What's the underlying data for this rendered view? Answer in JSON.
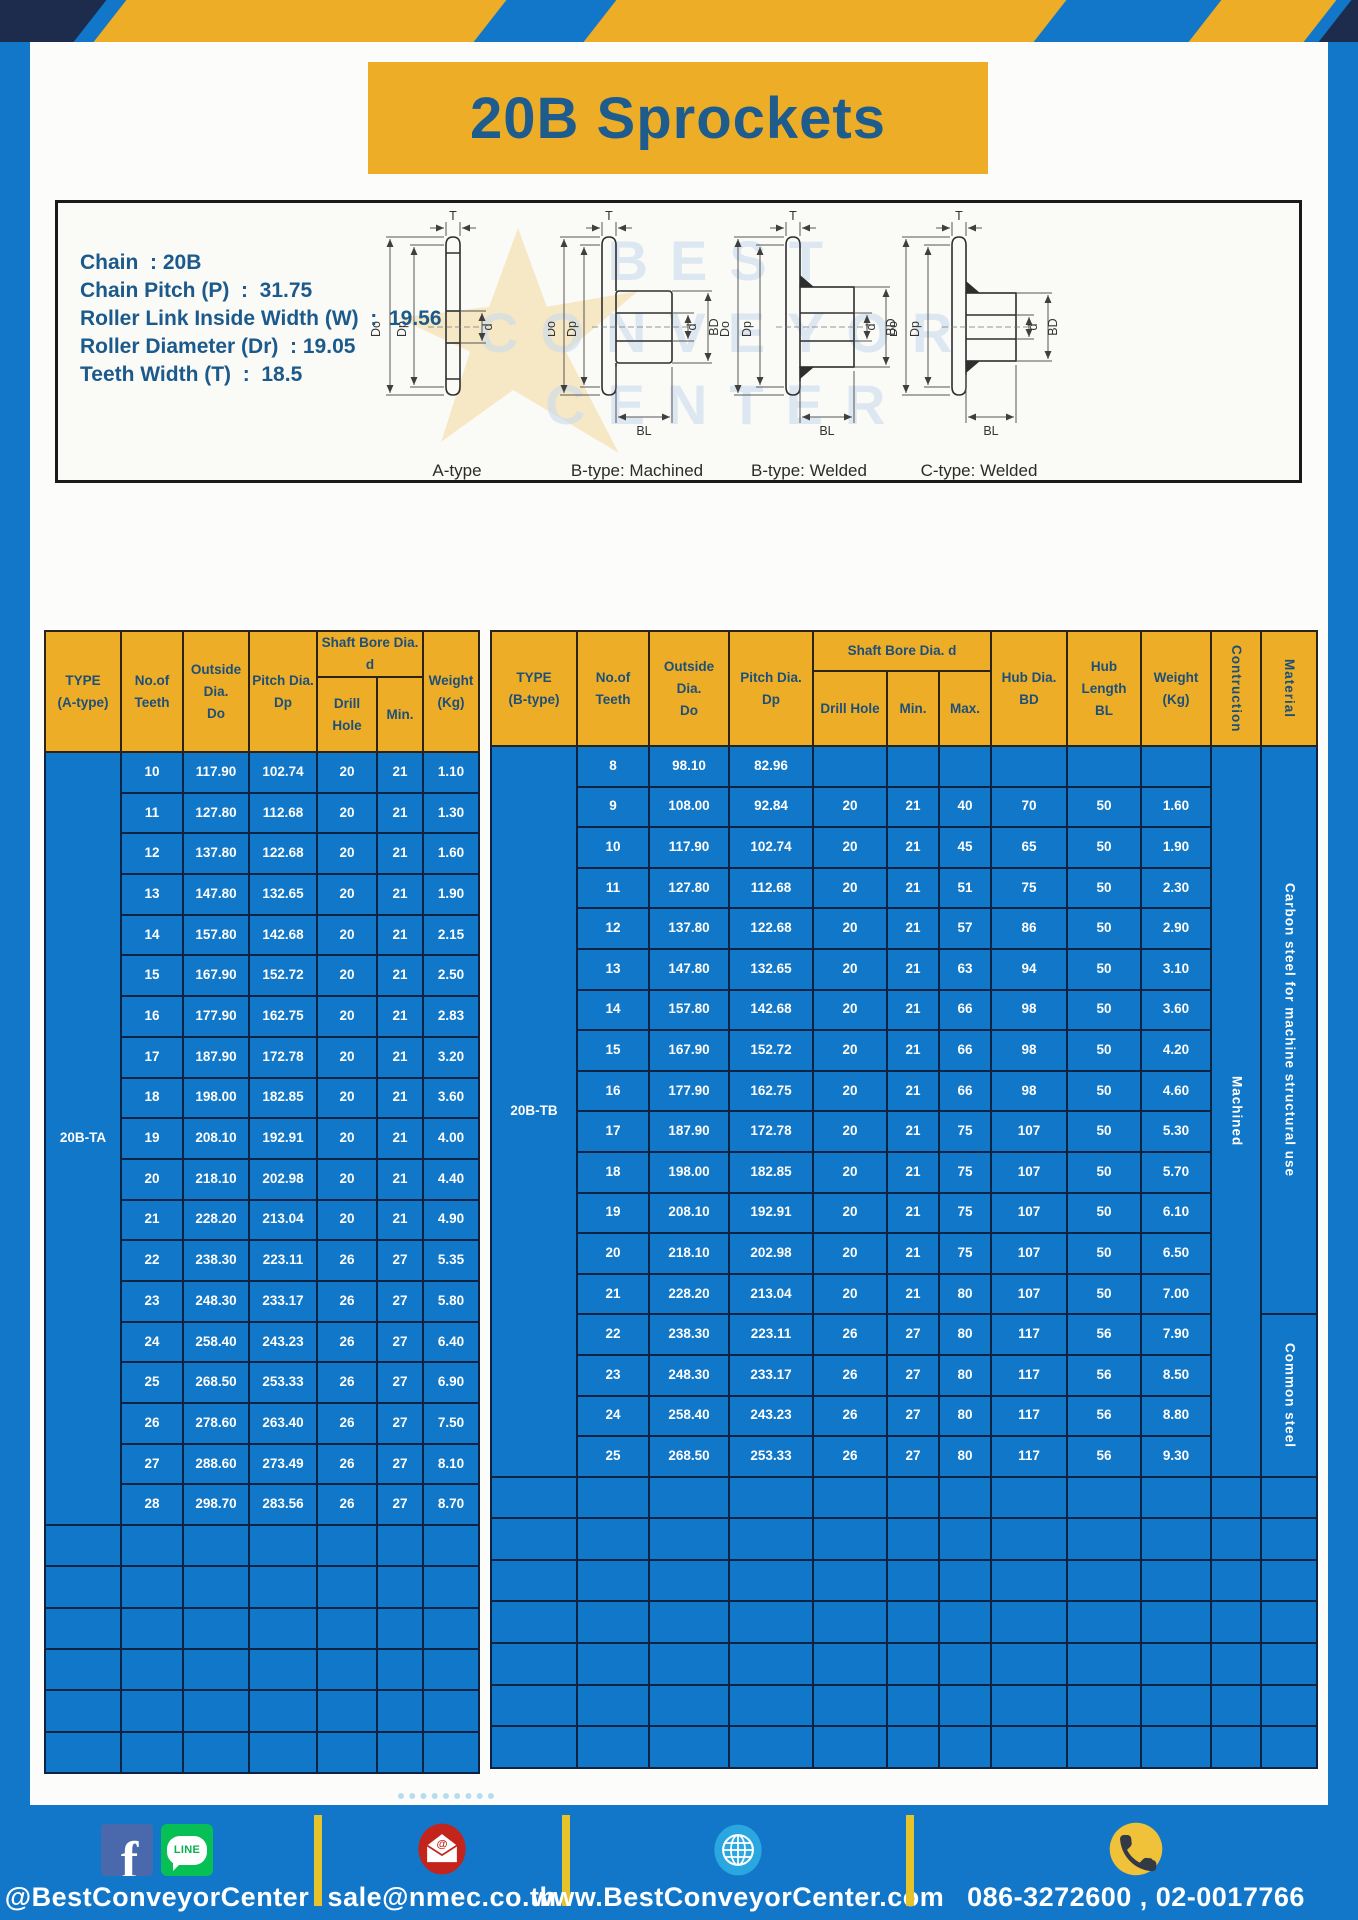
{
  "page": {
    "title": "20B Sprockets"
  },
  "specs": {
    "lines": [
      "Chain  : 20B",
      "Chain Pitch (P)  :  31.75",
      "Roller Link Inside Width (W)  :  19.56",
      "Roller Diameter (Dr)  : 19.05",
      "Teeth Width (T)  :  18.5"
    ]
  },
  "watermark": {
    "lines": [
      "BEST",
      "CONVEYOR",
      "CENTER"
    ]
  },
  "diagrams": {
    "items": [
      {
        "caption": "A-type",
        "labels": {
          "T": "T",
          "Do": "Do",
          "Dp": "Dp",
          "d": "d"
        }
      },
      {
        "caption": "B-type: Machined",
        "labels": {
          "T": "T",
          "Do": "Do",
          "Dp": "Dp",
          "d": "d",
          "BD": "BD",
          "BL": "BL"
        }
      },
      {
        "caption": "B-type: Welded",
        "labels": {
          "T": "T",
          "Do": "Do",
          "Dp": "Dp",
          "d": "d",
          "BD": "BD",
          "BL": "BL"
        }
      },
      {
        "caption": "C-type: Welded",
        "labels": {
          "T": "T",
          "Do": "Do",
          "Dp": "Dp",
          "d": "d",
          "BD": "BD",
          "BL": "BL"
        }
      }
    ]
  },
  "left_table": {
    "header": {
      "type": "TYPE\n(A-type)",
      "teeth": "No.of\nTeeth",
      "outside": "Outside\nDia.\nDo",
      "pitch": "Pitch Dia.\nDp",
      "shaft_bore": "Shaft Bore Dia. d",
      "drill_hole": "Drill Hole",
      "min": "Min.",
      "weight": "Weight\n(Kg)"
    },
    "type_label": "20B-TA",
    "empty_row_count": 6,
    "rows": [
      [
        "10",
        "117.90",
        "102.74",
        "20",
        "21",
        "1.10"
      ],
      [
        "11",
        "127.80",
        "112.68",
        "20",
        "21",
        "1.30"
      ],
      [
        "12",
        "137.80",
        "122.68",
        "20",
        "21",
        "1.60"
      ],
      [
        "13",
        "147.80",
        "132.65",
        "20",
        "21",
        "1.90"
      ],
      [
        "14",
        "157.80",
        "142.68",
        "20",
        "21",
        "2.15"
      ],
      [
        "15",
        "167.90",
        "152.72",
        "20",
        "21",
        "2.50"
      ],
      [
        "16",
        "177.90",
        "162.75",
        "20",
        "21",
        "2.83"
      ],
      [
        "17",
        "187.90",
        "172.78",
        "20",
        "21",
        "3.20"
      ],
      [
        "18",
        "198.00",
        "182.85",
        "20",
        "21",
        "3.60"
      ],
      [
        "19",
        "208.10",
        "192.91",
        "20",
        "21",
        "4.00"
      ],
      [
        "20",
        "218.10",
        "202.98",
        "20",
        "21",
        "4.40"
      ],
      [
        "21",
        "228.20",
        "213.04",
        "20",
        "21",
        "4.90"
      ],
      [
        "22",
        "238.30",
        "223.11",
        "26",
        "27",
        "5.35"
      ],
      [
        "23",
        "248.30",
        "233.17",
        "26",
        "27",
        "5.80"
      ],
      [
        "24",
        "258.40",
        "243.23",
        "26",
        "27",
        "6.40"
      ],
      [
        "25",
        "268.50",
        "253.33",
        "26",
        "27",
        "6.90"
      ],
      [
        "26",
        "278.60",
        "263.40",
        "26",
        "27",
        "7.50"
      ],
      [
        "27",
        "288.60",
        "273.49",
        "26",
        "27",
        "8.10"
      ],
      [
        "28",
        "298.70",
        "283.56",
        "26",
        "27",
        "8.70"
      ]
    ]
  },
  "right_table": {
    "header": {
      "type": "TYPE\n(B-type)",
      "teeth": "No.of\nTeeth",
      "outside": "Outside\nDia.\nDo",
      "pitch": "Pitch Dia.\nDp",
      "shaft_bore": "Shaft Bore Dia. d",
      "drill_hole": "Drill Hole",
      "min": "Min.",
      "max": "Max.",
      "hub_dia": "Hub Dia.\nBD",
      "hub_length": "Hub\nLength\nBL",
      "weight": "Weight\n(Kg)",
      "construction": "Contruction",
      "material": "Material"
    },
    "type_label": "20B-TB",
    "construction_value": "Machined",
    "materials": [
      {
        "label": "Carbon steel for machine structural use",
        "rowspan": 14
      },
      {
        "label": "Common steel",
        "rowspan": 4
      }
    ],
    "empty_row_count": 7,
    "rows": [
      [
        "8",
        "98.10",
        "82.96",
        "",
        "",
        "",
        "",
        "",
        ""
      ],
      [
        "9",
        "108.00",
        "92.84",
        "20",
        "21",
        "40",
        "70",
        "50",
        "1.60"
      ],
      [
        "10",
        "117.90",
        "102.74",
        "20",
        "21",
        "45",
        "65",
        "50",
        "1.90"
      ],
      [
        "11",
        "127.80",
        "112.68",
        "20",
        "21",
        "51",
        "75",
        "50",
        "2.30"
      ],
      [
        "12",
        "137.80",
        "122.68",
        "20",
        "21",
        "57",
        "86",
        "50",
        "2.90"
      ],
      [
        "13",
        "147.80",
        "132.65",
        "20",
        "21",
        "63",
        "94",
        "50",
        "3.10"
      ],
      [
        "14",
        "157.80",
        "142.68",
        "20",
        "21",
        "66",
        "98",
        "50",
        "3.60"
      ],
      [
        "15",
        "167.90",
        "152.72",
        "20",
        "21",
        "66",
        "98",
        "50",
        "4.20"
      ],
      [
        "16",
        "177.90",
        "162.75",
        "20",
        "21",
        "66",
        "98",
        "50",
        "4.60"
      ],
      [
        "17",
        "187.90",
        "172.78",
        "20",
        "21",
        "75",
        "107",
        "50",
        "5.30"
      ],
      [
        "18",
        "198.00",
        "182.85",
        "20",
        "21",
        "75",
        "107",
        "50",
        "5.70"
      ],
      [
        "19",
        "208.10",
        "192.91",
        "20",
        "21",
        "75",
        "107",
        "50",
        "6.10"
      ],
      [
        "20",
        "218.10",
        "202.98",
        "20",
        "21",
        "75",
        "107",
        "50",
        "6.50"
      ],
      [
        "21",
        "228.20",
        "213.04",
        "20",
        "21",
        "80",
        "107",
        "50",
        "7.00"
      ],
      [
        "22",
        "238.30",
        "223.11",
        "26",
        "27",
        "80",
        "117",
        "56",
        "7.90"
      ],
      [
        "23",
        "248.30",
        "233.17",
        "26",
        "27",
        "80",
        "117",
        "56",
        "8.50"
      ],
      [
        "24",
        "258.40",
        "243.23",
        "26",
        "27",
        "80",
        "117",
        "56",
        "8.80"
      ],
      [
        "25",
        "268.50",
        "253.33",
        "26",
        "27",
        "80",
        "117",
        "56",
        "9.30"
      ]
    ]
  },
  "footer": {
    "fb_letter": "f",
    "line_text": "LINE",
    "social_label": "@BestConveyorCenter",
    "email_label": "sale@nmec.co.th",
    "web_label": "www.BestConveyorCenter.com",
    "phone_label": "086-3272600 , 02-0017766"
  },
  "colors": {
    "frame_blue": "#1277c9",
    "cell_blue": "#1177c9",
    "header_yellow": "#eead26",
    "hazard_navy": "#1d2c4c",
    "dark_blue_text": "#1e5c8e",
    "divider_yellow": "#e6c32a"
  }
}
